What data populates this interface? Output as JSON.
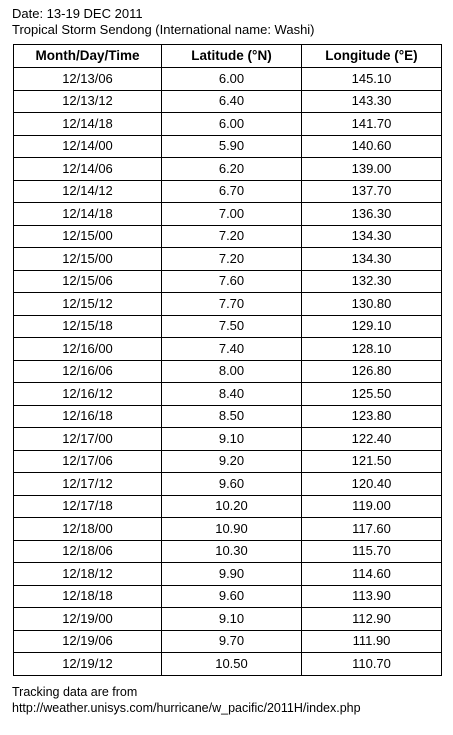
{
  "header": {
    "date_line": "Date: 13-19 DEC 2011",
    "storm_line": "Tropical Storm Sendong (International name: Washi)"
  },
  "table": {
    "columns": [
      "Month/Day/Time",
      "Latitude (°N)",
      "Longitude (°E)"
    ],
    "rows": [
      [
        "12/13/06",
        "6.00",
        "145.10"
      ],
      [
        "12/13/12",
        "6.40",
        "143.30"
      ],
      [
        "12/14/18",
        "6.00",
        "141.70"
      ],
      [
        "12/14/00",
        "5.90",
        "140.60"
      ],
      [
        "12/14/06",
        "6.20",
        "139.00"
      ],
      [
        "12/14/12",
        "6.70",
        "137.70"
      ],
      [
        "12/14/18",
        "7.00",
        "136.30"
      ],
      [
        "12/15/00",
        "7.20",
        "134.30"
      ],
      [
        "12/15/00",
        "7.20",
        "134.30"
      ],
      [
        "12/15/06",
        "7.60",
        "132.30"
      ],
      [
        "12/15/12",
        "7.70",
        "130.80"
      ],
      [
        "12/15/18",
        "7.50",
        "129.10"
      ],
      [
        "12/16/00",
        "7.40",
        "128.10"
      ],
      [
        "12/16/06",
        "8.00",
        "126.80"
      ],
      [
        "12/16/12",
        "8.40",
        "125.50"
      ],
      [
        "12/16/18",
        "8.50",
        "123.80"
      ],
      [
        "12/17/00",
        "9.10",
        "122.40"
      ],
      [
        "12/17/06",
        "9.20",
        "121.50"
      ],
      [
        "12/17/12",
        "9.60",
        "120.40"
      ],
      [
        "12/17/18",
        "10.20",
        "119.00"
      ],
      [
        "12/18/00",
        "10.90",
        "117.60"
      ],
      [
        "12/18/06",
        "10.30",
        "115.70"
      ],
      [
        "12/18/12",
        "9.90",
        "114.60"
      ],
      [
        "12/18/18",
        "9.60",
        "113.90"
      ],
      [
        "12/19/00",
        "9.10",
        "112.90"
      ],
      [
        "12/19/06",
        "9.70",
        "111.90"
      ],
      [
        "12/19/12",
        "10.50",
        "110.70"
      ]
    ]
  },
  "footer": {
    "source_line": "Tracking data are from",
    "source_url": "http://weather.unisys.com/hurricane/w_pacific/2011H/index.php"
  }
}
